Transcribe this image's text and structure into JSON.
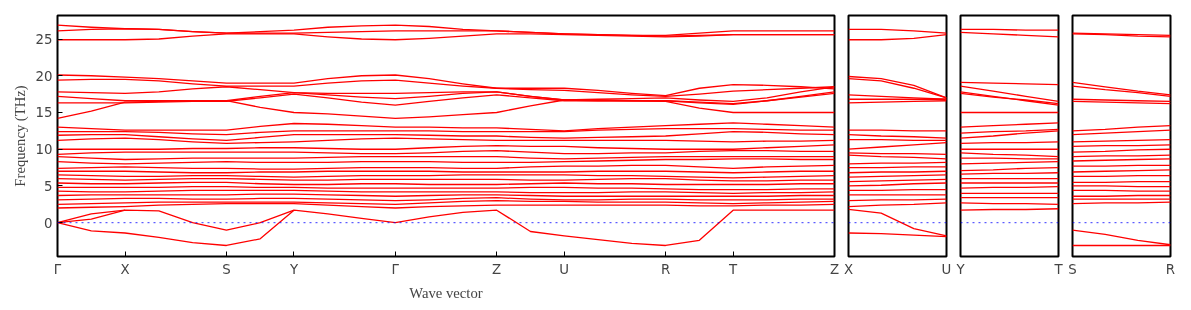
{
  "chart_data": [
    {
      "type": "line",
      "xlabel": "Wave vector",
      "ylabel": "Frequency (THz)",
      "ylim": [
        -4.6,
        28.2
      ],
      "categories": [
        "Γ",
        null,
        "X",
        null,
        null,
        "S",
        null,
        "Y",
        null,
        null,
        "Γ",
        null,
        null,
        "Z",
        null,
        "U",
        null,
        null,
        "R",
        null,
        "T",
        null,
        null,
        "Z"
      ],
      "yticks": [
        0,
        5,
        10,
        15,
        20,
        25
      ],
      "line_style": "solid",
      "marker": "none",
      "ref_lines": [
        {
          "axis": "y",
          "value": 0,
          "color": "#0000ff",
          "line_style": "dotted"
        }
      ],
      "series": [
        {
          "color": "#ff0000",
          "values": [
            26.9,
            26.6,
            26.4,
            26.3,
            26.0,
            25.8,
            26.0,
            26.2,
            26.6,
            26.8,
            26.9,
            26.7,
            26.3,
            26.1,
            25.9,
            25.7,
            25.6,
            25.5,
            25.5,
            25.8,
            26.1,
            26.1,
            26.1,
            26.1
          ]
        },
        {
          "color": "#ff0000",
          "values": [
            26.1,
            26.3,
            26.4,
            26.3,
            26.0,
            25.8,
            25.8,
            25.8,
            25.9,
            26.0,
            26.1,
            26.1,
            26.1,
            26.1,
            25.9,
            25.7,
            25.6,
            25.5,
            25.4,
            25.5,
            25.6,
            25.6,
            25.6,
            25.6
          ]
        },
        {
          "color": "#ff0000",
          "values": [
            24.9,
            24.9,
            24.9,
            25.0,
            25.4,
            25.7,
            25.7,
            25.7,
            25.3,
            25.0,
            24.9,
            25.1,
            25.4,
            25.7,
            25.7,
            25.6,
            25.5,
            25.4,
            25.3,
            25.4,
            25.6,
            25.6,
            25.6,
            25.6
          ]
        },
        {
          "color": "#ff0000",
          "values": [
            20.1,
            20.0,
            19.8,
            19.6,
            19.3,
            19.0,
            19.0,
            19.0,
            19.6,
            20.0,
            20.1,
            19.6,
            18.9,
            18.3,
            18.3,
            18.3,
            18.0,
            17.6,
            17.3,
            18.3,
            18.8,
            18.7,
            18.5,
            18.2
          ]
        },
        {
          "color": "#ff0000",
          "values": [
            19.4,
            19.5,
            19.5,
            19.3,
            18.9,
            18.6,
            18.6,
            18.6,
            19.0,
            19.3,
            19.4,
            19.0,
            18.6,
            18.3,
            18.1,
            18.0,
            17.7,
            17.4,
            17.2,
            17.5,
            17.9,
            18.1,
            18.3,
            18.5
          ]
        },
        {
          "color": "#ff0000",
          "values": [
            17.8,
            17.7,
            17.6,
            17.8,
            18.2,
            18.5,
            18.1,
            17.7,
            17.6,
            17.6,
            17.6,
            17.7,
            17.8,
            17.8,
            17.2,
            16.7,
            16.8,
            16.9,
            17.0,
            16.7,
            16.5,
            17.0,
            17.8,
            18.5
          ]
        },
        {
          "color": "#ff0000",
          "values": [
            17.2,
            16.9,
            16.6,
            16.6,
            16.6,
            16.6,
            17.2,
            17.7,
            17.4,
            17.1,
            16.9,
            17.2,
            17.6,
            17.8,
            17.2,
            16.7,
            16.7,
            16.6,
            16.6,
            16.3,
            16.1,
            16.6,
            17.2,
            17.8
          ]
        },
        {
          "color": "#ff0000",
          "values": [
            16.3,
            16.3,
            16.3,
            16.4,
            16.5,
            16.5,
            17.0,
            17.5,
            17.0,
            16.4,
            16.0,
            16.5,
            17.0,
            17.4,
            17.0,
            16.6,
            16.6,
            16.6,
            16.6,
            16.4,
            16.2,
            16.6,
            17.1,
            17.6
          ]
        },
        {
          "color": "#ff0000",
          "values": [
            14.2,
            15.2,
            16.4,
            16.5,
            16.6,
            16.6,
            15.7,
            15.0,
            14.8,
            14.5,
            14.2,
            14.4,
            14.7,
            15.0,
            15.9,
            16.7,
            16.6,
            16.6,
            16.5,
            15.6,
            15.0,
            15.0,
            15.0,
            15.0
          ]
        },
        {
          "color": "#ff0000",
          "values": [
            13.0,
            12.8,
            12.6,
            12.6,
            12.6,
            12.6,
            13.1,
            13.5,
            13.4,
            13.2,
            13.0,
            13.0,
            12.9,
            12.9,
            12.7,
            12.5,
            12.8,
            13.0,
            13.2,
            13.4,
            13.6,
            13.4,
            13.2,
            13.0
          ]
        },
        {
          "color": "#ff0000",
          "values": [
            12.4,
            12.4,
            12.4,
            12.3,
            12.1,
            12.0,
            12.3,
            12.5,
            12.5,
            12.5,
            12.5,
            12.5,
            12.4,
            12.4,
            12.4,
            12.4,
            12.6,
            12.7,
            12.8,
            12.8,
            12.8,
            12.7,
            12.6,
            12.6
          ]
        },
        {
          "color": "#ff0000",
          "values": [
            11.9,
            12.0,
            12.0,
            11.7,
            11.4,
            11.2,
            11.6,
            12.0,
            12.0,
            12.0,
            12.0,
            11.9,
            11.8,
            11.8,
            11.6,
            11.5,
            11.6,
            11.7,
            11.8,
            12.1,
            12.4,
            12.3,
            12.1,
            12.0
          ]
        },
        {
          "color": "#ff0000",
          "values": [
            11.2,
            11.4,
            11.5,
            11.3,
            11.0,
            10.8,
            10.9,
            11.0,
            11.2,
            11.4,
            11.5,
            11.4,
            11.3,
            11.2,
            11.2,
            11.2,
            11.2,
            11.2,
            11.2,
            11.1,
            11.0,
            11.1,
            11.1,
            11.2
          ]
        },
        {
          "color": "#ff0000",
          "values": [
            10.0,
            10.0,
            10.0,
            10.0,
            10.1,
            10.1,
            10.2,
            10.2,
            10.1,
            10.0,
            10.0,
            10.2,
            10.4,
            10.5,
            10.4,
            10.4,
            10.2,
            10.1,
            10.0,
            10.0,
            10.0,
            10.2,
            10.4,
            10.6
          ]
        },
        {
          "color": "#ff0000",
          "values": [
            9.3,
            9.5,
            9.6,
            9.6,
            9.6,
            9.6,
            9.6,
            9.6,
            9.5,
            9.4,
            9.4,
            9.5,
            9.7,
            9.8,
            9.6,
            9.4,
            9.4,
            9.5,
            9.5,
            9.7,
            9.8,
            9.8,
            9.7,
            9.7
          ]
        },
        {
          "color": "#ff0000",
          "values": [
            9.0,
            8.8,
            8.6,
            8.7,
            8.8,
            8.8,
            8.8,
            8.8,
            8.9,
            9.0,
            9.0,
            9.0,
            9.0,
            9.0,
            8.8,
            8.7,
            8.8,
            8.9,
            9.0,
            9.0,
            9.0,
            9.0,
            9.0,
            9.0
          ]
        },
        {
          "color": "#ff0000",
          "values": [
            8.3,
            8.1,
            8.0,
            8.1,
            8.2,
            8.3,
            8.2,
            8.2,
            8.2,
            8.3,
            8.3,
            8.3,
            8.2,
            8.2,
            8.2,
            8.3,
            8.4,
            8.5,
            8.6,
            8.6,
            8.7,
            8.7,
            8.6,
            8.6
          ]
        },
        {
          "color": "#ff0000",
          "values": [
            7.4,
            7.5,
            7.6,
            7.5,
            7.4,
            7.4,
            7.3,
            7.3,
            7.4,
            7.5,
            7.5,
            7.5,
            7.4,
            7.4,
            7.6,
            7.7,
            7.7,
            7.8,
            7.8,
            7.6,
            7.4,
            7.6,
            7.7,
            7.8
          ]
        },
        {
          "color": "#ff0000",
          "values": [
            7.0,
            7.0,
            7.0,
            6.9,
            6.8,
            6.8,
            6.9,
            6.9,
            7.0,
            7.0,
            7.0,
            7.0,
            6.9,
            6.9,
            6.9,
            6.9,
            7.0,
            7.0,
            7.0,
            6.9,
            6.8,
            6.9,
            7.0,
            7.0
          ]
        },
        {
          "color": "#ff0000",
          "values": [
            6.5,
            6.4,
            6.3,
            6.3,
            6.4,
            6.4,
            6.3,
            6.2,
            6.3,
            6.4,
            6.4,
            6.4,
            6.5,
            6.5,
            6.5,
            6.5,
            6.4,
            6.4,
            6.3,
            6.2,
            6.1,
            6.2,
            6.3,
            6.4
          ]
        },
        {
          "color": "#ff0000",
          "values": [
            6.0,
            5.9,
            5.8,
            5.9,
            6.0,
            6.0,
            5.9,
            5.8,
            5.8,
            5.9,
            5.9,
            5.9,
            5.9,
            5.9,
            5.8,
            5.8,
            5.9,
            6.0,
            6.0,
            5.8,
            5.7,
            5.7,
            5.8,
            5.8
          ]
        },
        {
          "color": "#ff0000",
          "values": [
            5.4,
            5.3,
            5.3,
            5.4,
            5.5,
            5.5,
            5.3,
            5.2,
            5.2,
            5.3,
            5.3,
            5.2,
            5.2,
            5.2,
            5.3,
            5.4,
            5.3,
            5.3,
            5.2,
            5.2,
            5.2,
            5.2,
            5.3,
            5.3
          ]
        },
        {
          "color": "#ff0000",
          "values": [
            4.8,
            4.8,
            4.8,
            4.8,
            4.9,
            4.9,
            4.8,
            4.8,
            4.7,
            4.7,
            4.7,
            4.7,
            4.7,
            4.7,
            4.8,
            4.8,
            4.7,
            4.7,
            4.6,
            4.5,
            4.5,
            4.5,
            4.6,
            4.6
          ]
        },
        {
          "color": "#ff0000",
          "values": [
            4.3,
            4.2,
            4.2,
            4.3,
            4.4,
            4.4,
            4.4,
            4.4,
            4.3,
            4.2,
            4.2,
            4.2,
            4.2,
            4.2,
            4.1,
            4.1,
            4.1,
            4.2,
            4.2,
            4.1,
            4.0,
            4.1,
            4.1,
            4.2
          ]
        },
        {
          "color": "#ff0000",
          "values": [
            3.7,
            3.8,
            3.8,
            3.8,
            3.8,
            3.8,
            3.9,
            3.9,
            3.8,
            3.7,
            3.6,
            3.7,
            3.8,
            3.8,
            3.7,
            3.6,
            3.6,
            3.6,
            3.6,
            3.6,
            3.6,
            3.6,
            3.7,
            3.7
          ]
        },
        {
          "color": "#ff0000",
          "values": [
            3.1,
            3.2,
            3.3,
            3.3,
            3.2,
            3.2,
            3.3,
            3.3,
            3.2,
            3.1,
            3.0,
            3.1,
            3.3,
            3.4,
            3.2,
            3.1,
            3.1,
            3.2,
            3.2,
            3.1,
            3.1,
            3.1,
            3.2,
            3.2
          ]
        },
        {
          "color": "#ff0000",
          "values": [
            2.5,
            2.6,
            2.7,
            2.8,
            2.8,
            2.8,
            2.8,
            2.8,
            2.7,
            2.6,
            2.5,
            2.7,
            2.9,
            3.0,
            2.9,
            2.9,
            2.8,
            2.8,
            2.8,
            2.7,
            2.6,
            2.7,
            2.8,
            2.9
          ]
        },
        {
          "color": "#ff0000",
          "values": [
            2.0,
            2.1,
            2.2,
            2.4,
            2.5,
            2.6,
            2.6,
            2.6,
            2.4,
            2.2,
            2.0,
            2.2,
            2.3,
            2.4,
            2.4,
            2.4,
            2.4,
            2.4,
            2.4,
            2.3,
            2.3,
            2.4,
            2.4,
            2.5
          ]
        },
        {
          "color": "#ff0000",
          "values": [
            0,
            1.2,
            1.7,
            1.6,
            0,
            -1.0,
            0,
            1.7,
            1.2,
            0.6,
            0,
            0.8,
            1.4,
            1.7,
            -1.2,
            -1.8,
            -2.3,
            -2.8,
            -3.1,
            -2.4,
            1.7,
            1.7,
            1.7,
            1.7
          ]
        },
        {
          "color": "#ff0000",
          "values": [
            0,
            0.5,
            1.7,
            null,
            null,
            null,
            null,
            null,
            null,
            null,
            null,
            null,
            null,
            null,
            null,
            null,
            null,
            null,
            null,
            null,
            null,
            null,
            null,
            null
          ]
        },
        {
          "color": "#ff0000",
          "values": [
            0,
            -1.1,
            -1.4,
            -2.0,
            -2.7,
            -3.1,
            -2.2,
            1.7,
            null,
            null,
            null,
            null,
            null,
            null,
            null,
            null,
            null,
            null,
            null,
            null,
            null,
            null,
            null,
            null
          ]
        }
      ]
    },
    {
      "type": "line",
      "ylim": [
        -4.6,
        28.2
      ],
      "tick_labels": "x",
      "categories": [
        "X",
        null,
        null,
        "U"
      ],
      "yticks": [
        0,
        5,
        10,
        15,
        20,
        25
      ],
      "line_style": "solid",
      "marker": "none",
      "ref_lines": [
        {
          "axis": "y",
          "value": 0,
          "color": "#0000ff",
          "line_style": "dotted"
        }
      ],
      "series": [
        {
          "color": "#ff0000",
          "values": [
            26.3,
            26.3,
            26.1,
            25.8
          ]
        },
        {
          "color": "#ff0000",
          "values": [
            24.9,
            24.9,
            25.1,
            25.6
          ]
        },
        {
          "color": "#ff0000",
          "values": [
            19.9,
            19.6,
            18.7,
            17.0
          ]
        },
        {
          "color": "#ff0000",
          "values": [
            19.6,
            19.3,
            18.3,
            17.0
          ]
        },
        {
          "color": "#ff0000",
          "values": [
            17.4,
            17.2,
            17.0,
            16.8
          ]
        },
        {
          "color": "#ff0000",
          "values": [
            16.8,
            16.8,
            16.8,
            16.8
          ]
        },
        {
          "color": "#ff0000",
          "values": [
            16.3,
            16.4,
            16.5,
            16.6
          ]
        },
        {
          "color": "#ff0000",
          "values": [
            12.6,
            12.6,
            12.5,
            12.5
          ]
        },
        {
          "color": "#ff0000",
          "values": [
            12.0,
            11.8,
            11.7,
            11.5
          ]
        },
        {
          "color": "#ff0000",
          "values": [
            11.3,
            11.3,
            11.2,
            11.2
          ]
        },
        {
          "color": "#ff0000",
          "values": [
            10.0,
            10.3,
            10.6,
            10.9
          ]
        },
        {
          "color": "#ff0000",
          "values": [
            9.5,
            9.4,
            9.4,
            9.3
          ]
        },
        {
          "color": "#ff0000",
          "values": [
            9.2,
            9.0,
            8.9,
            8.7
          ]
        },
        {
          "color": "#ff0000",
          "values": [
            8.0,
            8.1,
            8.1,
            8.2
          ]
        },
        {
          "color": "#ff0000",
          "values": [
            7.5,
            7.5,
            7.6,
            7.6
          ]
        },
        {
          "color": "#ff0000",
          "values": [
            6.8,
            6.9,
            6.9,
            7.0
          ]
        },
        {
          "color": "#ff0000",
          "values": [
            6.2,
            6.3,
            6.4,
            6.5
          ]
        },
        {
          "color": "#ff0000",
          "values": [
            5.6,
            5.7,
            5.8,
            5.9
          ]
        },
        {
          "color": "#ff0000",
          "values": [
            5.0,
            5.1,
            5.3,
            5.4
          ]
        },
        {
          "color": "#ff0000",
          "values": [
            4.4,
            4.4,
            4.5,
            4.5
          ]
        },
        {
          "color": "#ff0000",
          "values": [
            3.8,
            3.8,
            3.8,
            3.8
          ]
        },
        {
          "color": "#ff0000",
          "values": [
            3.0,
            3.1,
            3.1,
            3.2
          ]
        },
        {
          "color": "#ff0000",
          "values": [
            2.2,
            2.4,
            2.5,
            2.7
          ]
        },
        {
          "color": "#ff0000",
          "values": [
            1.8,
            1.3,
            -0.8,
            -1.8
          ]
        },
        {
          "color": "#ff0000",
          "values": [
            -1.4,
            -1.5,
            -1.7,
            -1.9
          ]
        }
      ]
    },
    {
      "type": "line",
      "ylim": [
        -4.6,
        28.2
      ],
      "tick_labels": "x",
      "categories": [
        "Y",
        null,
        null,
        "T"
      ],
      "yticks": [
        0,
        5,
        10,
        15,
        20,
        25
      ],
      "line_style": "solid",
      "marker": "none",
      "ref_lines": [
        {
          "axis": "y",
          "value": 0,
          "color": "#0000ff",
          "line_style": "dotted"
        }
      ],
      "series": [
        {
          "color": "#ff0000",
          "values": [
            26.3,
            26.3,
            26.2,
            26.2
          ]
        },
        {
          "color": "#ff0000",
          "values": [
            25.9,
            25.7,
            25.5,
            25.3
          ]
        },
        {
          "color": "#ff0000",
          "values": [
            19.1,
            19.0,
            18.9,
            18.8
          ]
        },
        {
          "color": "#ff0000",
          "values": [
            18.6,
            17.9,
            17.2,
            16.5
          ]
        },
        {
          "color": "#ff0000",
          "values": [
            17.8,
            17.2,
            16.6,
            16.0
          ]
        },
        {
          "color": "#ff0000",
          "values": [
            17.6,
            17.1,
            16.7,
            16.2
          ]
        },
        {
          "color": "#ff0000",
          "values": [
            15.0,
            15.0,
            15.0,
            15.0
          ]
        },
        {
          "color": "#ff0000",
          "values": [
            13.0,
            13.2,
            13.4,
            13.6
          ]
        },
        {
          "color": "#ff0000",
          "values": [
            12.2,
            12.4,
            12.5,
            12.7
          ]
        },
        {
          "color": "#ff0000",
          "values": [
            11.5,
            11.8,
            12.2,
            12.5
          ]
        },
        {
          "color": "#ff0000",
          "values": [
            10.8,
            10.9,
            10.9,
            11.0
          ]
        },
        {
          "color": "#ff0000",
          "values": [
            10.0,
            10.0,
            10.0,
            10.0
          ]
        },
        {
          "color": "#ff0000",
          "values": [
            9.5,
            9.3,
            9.2,
            9.0
          ]
        },
        {
          "color": "#ff0000",
          "values": [
            8.8,
            8.8,
            8.7,
            8.7
          ]
        },
        {
          "color": "#ff0000",
          "values": [
            8.0,
            8.1,
            8.2,
            8.3
          ]
        },
        {
          "color": "#ff0000",
          "values": [
            7.1,
            7.2,
            7.4,
            7.5
          ]
        },
        {
          "color": "#ff0000",
          "values": [
            6.6,
            6.7,
            6.7,
            6.8
          ]
        },
        {
          "color": "#ff0000",
          "values": [
            6.0,
            6.0,
            6.0,
            6.0
          ]
        },
        {
          "color": "#ff0000",
          "values": [
            5.4,
            5.4,
            5.4,
            5.4
          ]
        },
        {
          "color": "#ff0000",
          "values": [
            4.7,
            4.8,
            4.8,
            4.9
          ]
        },
        {
          "color": "#ff0000",
          "values": [
            4.0,
            4.0,
            4.0,
            4.0
          ]
        },
        {
          "color": "#ff0000",
          "values": [
            3.4,
            3.4,
            3.4,
            3.4
          ]
        },
        {
          "color": "#ff0000",
          "values": [
            2.7,
            2.6,
            2.6,
            2.5
          ]
        },
        {
          "color": "#ff0000",
          "values": [
            1.7,
            1.8,
            1.8,
            1.9
          ]
        }
      ]
    },
    {
      "type": "line",
      "ylim": [
        -4.6,
        28.2
      ],
      "tick_labels": "x",
      "categories": [
        "S",
        null,
        null,
        "R"
      ],
      "yticks": [
        0,
        5,
        10,
        15,
        20,
        25
      ],
      "line_style": "solid",
      "marker": "none",
      "ref_lines": [
        {
          "axis": "y",
          "value": 0,
          "color": "#0000ff",
          "line_style": "dotted"
        }
      ],
      "series": [
        {
          "color": "#ff0000",
          "values": [
            25.8,
            25.7,
            25.6,
            25.5
          ]
        },
        {
          "color": "#ff0000",
          "values": [
            25.7,
            25.6,
            25.4,
            25.3
          ]
        },
        {
          "color": "#ff0000",
          "values": [
            19.1,
            18.5,
            17.9,
            17.4
          ]
        },
        {
          "color": "#ff0000",
          "values": [
            18.6,
            18.1,
            17.7,
            17.2
          ]
        },
        {
          "color": "#ff0000",
          "values": [
            16.8,
            16.7,
            16.6,
            16.5
          ]
        },
        {
          "color": "#ff0000",
          "values": [
            16.5,
            16.4,
            16.3,
            16.2
          ]
        },
        {
          "color": "#ff0000",
          "values": [
            12.5,
            12.7,
            13.0,
            13.2
          ]
        },
        {
          "color": "#ff0000",
          "values": [
            12.0,
            12.2,
            12.4,
            12.6
          ]
        },
        {
          "color": "#ff0000",
          "values": [
            11.0,
            11.1,
            11.2,
            11.3
          ]
        },
        {
          "color": "#ff0000",
          "values": [
            10.4,
            10.5,
            10.5,
            10.6
          ]
        },
        {
          "color": "#ff0000",
          "values": [
            9.6,
            9.7,
            9.9,
            10.0
          ]
        },
        {
          "color": "#ff0000",
          "values": [
            9.0,
            9.1,
            9.1,
            9.2
          ]
        },
        {
          "color": "#ff0000",
          "values": [
            8.4,
            8.5,
            8.6,
            8.7
          ]
        },
        {
          "color": "#ff0000",
          "values": [
            7.7,
            7.7,
            7.8,
            7.8
          ]
        },
        {
          "color": "#ff0000",
          "values": [
            6.9,
            7.0,
            7.1,
            7.2
          ]
        },
        {
          "color": "#ff0000",
          "values": [
            6.3,
            6.3,
            6.4,
            6.4
          ]
        },
        {
          "color": "#ff0000",
          "values": [
            5.5,
            5.5,
            5.6,
            5.6
          ]
        },
        {
          "color": "#ff0000",
          "values": [
            5.0,
            5.0,
            4.9,
            4.9
          ]
        },
        {
          "color": "#ff0000",
          "values": [
            4.4,
            4.4,
            4.3,
            4.3
          ]
        },
        {
          "color": "#ff0000",
          "values": [
            3.6,
            3.6,
            3.7,
            3.7
          ]
        },
        {
          "color": "#ff0000",
          "values": [
            3.2,
            3.2,
            3.2,
            3.2
          ]
        },
        {
          "color": "#ff0000",
          "values": [
            2.6,
            2.7,
            2.7,
            2.8
          ]
        },
        {
          "color": "#ff0000",
          "values": [
            -1.0,
            -1.6,
            -2.4,
            -3.0
          ]
        },
        {
          "color": "#ff0000",
          "values": [
            -3.1,
            -3.1,
            -3.1,
            -3.1
          ]
        }
      ]
    }
  ]
}
